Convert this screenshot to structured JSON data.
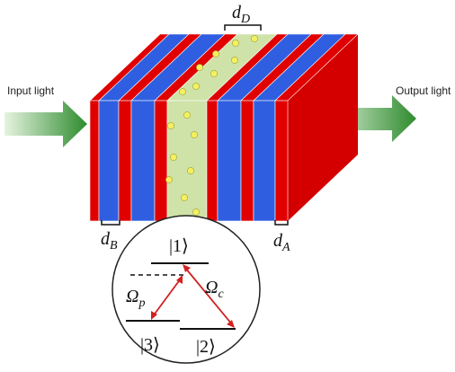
{
  "labels": {
    "input_light": "Input light",
    "output_light": "Output light",
    "d_D": {
      "main": "d",
      "sub": "D"
    },
    "d_B": {
      "main": "d",
      "sub": "B"
    },
    "d_A": {
      "main": "d",
      "sub": "A"
    },
    "level_1": "|1⟩",
    "level_2": "|2⟩",
    "level_3": "|3⟩",
    "omega_p": {
      "main": "Ω",
      "sub": "p"
    },
    "omega_c": {
      "main": "Ω",
      "sub": "c"
    }
  }
}
